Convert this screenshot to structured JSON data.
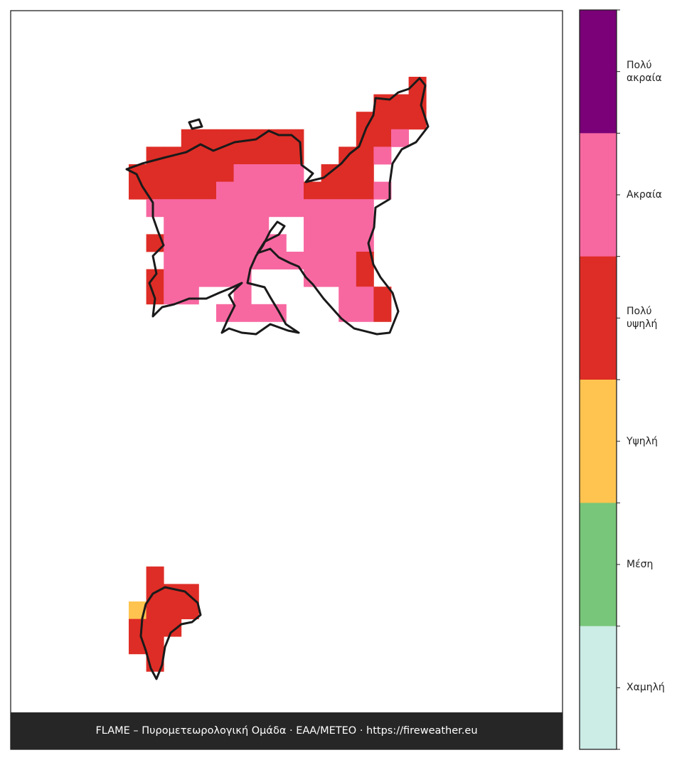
{
  "legend": {
    "items": [
      {
        "label": "Πολύ\nακραία",
        "color": "#7a0177"
      },
      {
        "label": "Ακραία",
        "color": "#f768a1"
      },
      {
        "label": "Πολύ\nυψηλή",
        "color": "#de2d26"
      },
      {
        "label": "Υψηλή",
        "color": "#fec44f"
      },
      {
        "label": "Μέση",
        "color": "#78c679"
      },
      {
        "label": "Χαμηλή",
        "color": "#ccece6"
      }
    ]
  },
  "footer": {
    "text": "FLAME – Πυρομετεωρολογική Ομάδα · ΕΑΑ/METEO · https://fireweather.eu"
  }
}
